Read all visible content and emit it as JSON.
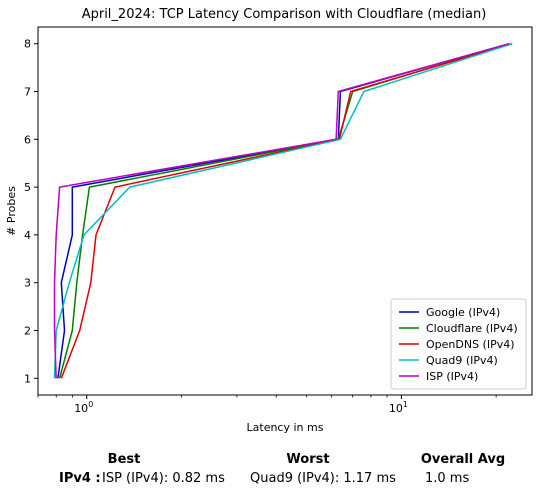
{
  "chart_data": {
    "type": "line",
    "title": "April_2024: TCP Latency Comparison with Cloudflare (median)",
    "xlabel": "Latency in ms",
    "ylabel": "# Probes",
    "xscale": "log",
    "xlim": [
      0.7,
      26
    ],
    "ylim": [
      0.65,
      8.35
    ],
    "x_ticks": [
      {
        "value": 1,
        "label": "10^0"
      },
      {
        "value": 10,
        "label": "10^1"
      }
    ],
    "y_ticks": [
      1,
      2,
      3,
      4,
      5,
      6,
      7,
      8
    ],
    "grid": false,
    "legend_position": "bottom-right",
    "series": [
      {
        "name": "Google (IPv4)",
        "color": "#0000bf",
        "points": [
          [
            0.81,
            1
          ],
          [
            0.85,
            2
          ],
          [
            0.83,
            3
          ],
          [
            0.9,
            4
          ],
          [
            0.9,
            5
          ],
          [
            6.3,
            6
          ],
          [
            6.4,
            7
          ],
          [
            22,
            8
          ]
        ]
      },
      {
        "name": "Cloudflare (IPv4)",
        "color": "#008000",
        "points": [
          [
            0.82,
            1
          ],
          [
            0.9,
            2
          ],
          [
            0.93,
            3
          ],
          [
            0.97,
            4
          ],
          [
            1.02,
            5
          ],
          [
            6.3,
            6
          ],
          [
            7.0,
            7
          ],
          [
            22,
            8
          ]
        ]
      },
      {
        "name": "OpenDNS (IPv4)",
        "color": "#e00000",
        "points": [
          [
            0.83,
            1
          ],
          [
            0.95,
            2
          ],
          [
            1.03,
            3
          ],
          [
            1.07,
            4
          ],
          [
            1.23,
            5
          ],
          [
            6.35,
            6
          ],
          [
            6.9,
            7
          ],
          [
            22.5,
            8
          ]
        ]
      },
      {
        "name": "Quad9 (IPv4)",
        "color": "#00bfbf",
        "points": [
          [
            0.79,
            1
          ],
          [
            0.8,
            2
          ],
          [
            0.88,
            3
          ],
          [
            0.98,
            4
          ],
          [
            1.37,
            5
          ],
          [
            6.4,
            6
          ],
          [
            7.6,
            7
          ],
          [
            22.5,
            8
          ]
        ]
      },
      {
        "name": "ISP (IPv4)",
        "color": "#bf00bf",
        "points": [
          [
            0.8,
            1
          ],
          [
            0.79,
            2
          ],
          [
            0.79,
            3
          ],
          [
            0.8,
            4
          ],
          [
            0.82,
            5
          ],
          [
            6.2,
            6
          ],
          [
            6.3,
            7
          ],
          [
            22,
            8
          ]
        ]
      }
    ]
  },
  "summary": {
    "best_label": "Best",
    "worst_label": "Worst",
    "avg_label": "Overall Avg",
    "row_label": "IPv4 :",
    "best_value": "ISP (IPv4): 0.82 ms",
    "worst_value": "Quad9 (IPv4): 1.17 ms",
    "avg_value": "1.0 ms"
  }
}
